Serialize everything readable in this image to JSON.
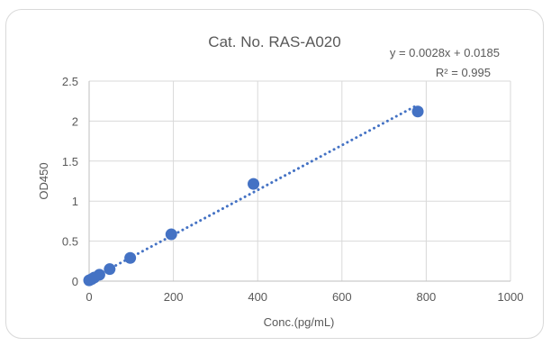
{
  "chart_data": {
    "type": "scatter",
    "title": "Cat. No. RAS-A020",
    "xlabel": "Conc.(pg/mL)",
    "ylabel": "OD450",
    "xlim": [
      0,
      1000
    ],
    "ylim": [
      0,
      2.5
    ],
    "x_ticks": [
      0,
      200,
      400,
      600,
      800,
      1000
    ],
    "y_ticks": [
      0,
      0.5,
      1,
      1.5,
      2,
      2.5
    ],
    "x_tick_labels": [
      "0",
      "200",
      "400",
      "600",
      "800",
      "1000"
    ],
    "y_tick_labels": [
      "0",
      "0.5",
      "1",
      "1.5",
      "2",
      "2.5"
    ],
    "grid": true,
    "series": [
      {
        "color": "#4472c4",
        "x": [
          0,
          6.1,
          12.2,
          24.4,
          48.8,
          97.5,
          195,
          390,
          780
        ],
        "y": [
          0.01,
          0.025,
          0.045,
          0.08,
          0.15,
          0.29,
          0.585,
          1.215,
          2.12
        ]
      }
    ],
    "trendline": {
      "type": "linear",
      "slope": 0.0028,
      "intercept": 0.0185,
      "style": "dotted",
      "color": "#4472c4",
      "equation_label": "y = 0.0028x + 0.0185",
      "r2_label": "R² = 0.995"
    }
  }
}
